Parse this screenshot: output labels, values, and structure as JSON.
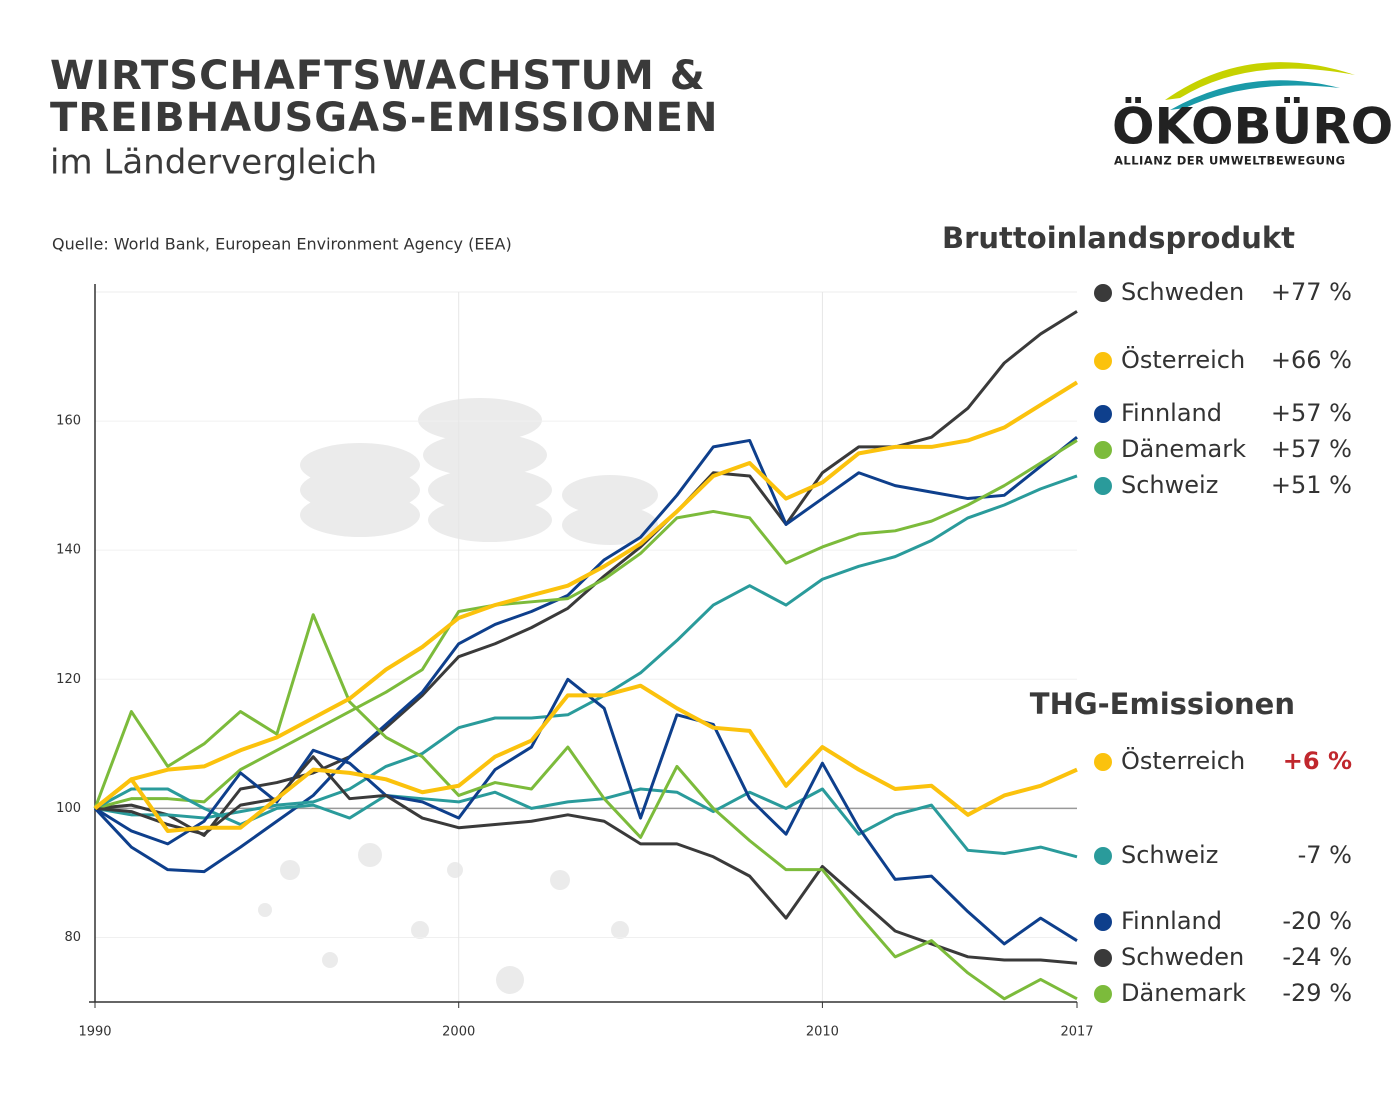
{
  "logo": {
    "name": "ÖKOBÜRO",
    "tagline": "ALLIANZ DER UMWELTBEWEGUNG"
  },
  "chart_data": {
    "type": "line",
    "title": [
      "WIRTSCHAFTSWACHSTUM &",
      "TREIBHAUSGAS-EMISSIONEN"
    ],
    "subtitle": "im Ländervergleich",
    "source": "Quelle: World Bank, European Environment Agency (EEA)",
    "x": [
      1990,
      1991,
      1992,
      1993,
      1994,
      1995,
      1996,
      1997,
      1998,
      1999,
      2000,
      2001,
      2002,
      2003,
      2004,
      2005,
      2006,
      2007,
      2008,
      2009,
      2010,
      2011,
      2012,
      2013,
      2014,
      2015,
      2016,
      2017
    ],
    "xlim": [
      1990,
      2017
    ],
    "xticks": [
      1990,
      2000,
      2010,
      2017
    ],
    "ylim": [
      70,
      180
    ],
    "yticks": [
      80,
      100,
      120,
      140,
      160
    ],
    "grid": true,
    "reference_line": 100,
    "groups": [
      {
        "title": "Bruttoinlandsprodukt",
        "series": [
          {
            "name": "Schweden",
            "color": "#3a3a3a",
            "change": "+77 %",
            "values": [
              100,
              100.5,
              99,
              95.8,
              103,
              104,
              105.5,
              108,
              112.5,
              117.5,
              123.5,
              125.5,
              128,
              131,
              136,
              140.5,
              146,
              152,
              151.5,
              144,
              152,
              156,
              156,
              157.5,
              162,
              169,
              173.5,
              177
            ]
          },
          {
            "name": "Österreich",
            "color": "#fbc20d",
            "change": "+66 %",
            "values": [
              100,
              104.5,
              106,
              106.5,
              109,
              111,
              114,
              117,
              121.5,
              125,
              129.5,
              131.5,
              133,
              134.5,
              137.5,
              141,
              146,
              151.5,
              153.5,
              148,
              150.5,
              155,
              156,
              156,
              157,
              159,
              162.5,
              166
            ]
          },
          {
            "name": "Finnland",
            "color": "#0e3f8c",
            "change": "+57 %",
            "values": [
              100,
              94,
              90.5,
              90.2,
              94,
              98,
              102,
              108,
              113,
              118,
              125.5,
              128.5,
              130.5,
              133,
              138.5,
              142,
              148.5,
              156,
              157,
              144,
              148,
              152,
              150,
              149,
              148,
              148.5,
              153,
              157.5
            ]
          },
          {
            "name": "Dänemark",
            "color": "#7cbb3b",
            "change": "+57 %",
            "values": [
              100,
              101.5,
              101.5,
              101,
              106,
              109,
              112,
              115,
              118,
              121.5,
              130.5,
              131.5,
              132,
              132.5,
              135.5,
              139.5,
              145,
              146,
              145,
              138,
              140.5,
              142.5,
              143,
              144.5,
              147,
              150,
              153.5,
              157
            ]
          },
          {
            "name": "Schweiz",
            "color": "#2a9b9b",
            "change": "+51 %",
            "values": [
              100,
              99,
              99,
              98.5,
              99.5,
              100.5,
              101,
              103,
              106.5,
              108.5,
              112.5,
              114,
              114,
              114.5,
              117.5,
              121,
              126,
              131.5,
              134.5,
              131.5,
              135.5,
              137.5,
              139,
              141.5,
              145,
              147,
              149.5,
              151.5
            ]
          }
        ]
      },
      {
        "title": "THG-Emissionen",
        "series": [
          {
            "name": "Österreich",
            "color": "#fbc20d",
            "change": "+6 %",
            "change_color": "#c0272d",
            "values": [
              100,
              104.5,
              96.5,
              97,
              97,
              101.5,
              106,
              105.5,
              104.5,
              102.5,
              103.5,
              108,
              110.5,
              117.5,
              117.5,
              119,
              115.5,
              112.5,
              112,
              103.5,
              109.5,
              106,
              103,
              103.5,
              99,
              102,
              103.5,
              106
            ]
          },
          {
            "name": "Schweiz",
            "color": "#2a9b9b",
            "change": "-7 %",
            "values": [
              100,
              103,
              103,
              100,
              97.5,
              100,
              100.5,
              98.5,
              102,
              101.5,
              101,
              102.5,
              100,
              101,
              101.5,
              103,
              102.5,
              99.5,
              102.5,
              100,
              103,
              96,
              99,
              100.5,
              93.5,
              93,
              94,
              92.5
            ]
          },
          {
            "name": "Finnland",
            "color": "#0e3f8c",
            "change": "-20 %",
            "values": [
              100,
              96.5,
              94.5,
              98,
              105.5,
              101,
              109,
              107,
              102,
              101,
              98.5,
              106,
              109.5,
              120,
              115.5,
              98.5,
              114.5,
              113,
              101.5,
              96,
              107,
              97,
              89,
              89.5,
              84,
              79,
              83,
              79.5
            ]
          },
          {
            "name": "Schweden",
            "color": "#3a3a3a",
            "change": "-24 %",
            "values": [
              100,
              99.5,
              97.5,
              96,
              100.5,
              101.5,
              108,
              101.5,
              102,
              98.5,
              97,
              97.5,
              98,
              99,
              98,
              94.5,
              94.5,
              92.5,
              89.5,
              83,
              91,
              86,
              81,
              79,
              77,
              76.5,
              76.5,
              76
            ]
          },
          {
            "name": "Dänemark",
            "color": "#7cbb3b",
            "change": "-29 %",
            "values": [
              100,
              115,
              106.5,
              110,
              115,
              111.5,
              130,
              116.5,
              111,
              108,
              102,
              104,
              103,
              109.5,
              101.5,
              95.5,
              106.5,
              100,
              95,
              90.5,
              90.5,
              83.5,
              77,
              79.5,
              74.5,
              70.5,
              73.5,
              70.5
            ]
          }
        ]
      }
    ]
  }
}
